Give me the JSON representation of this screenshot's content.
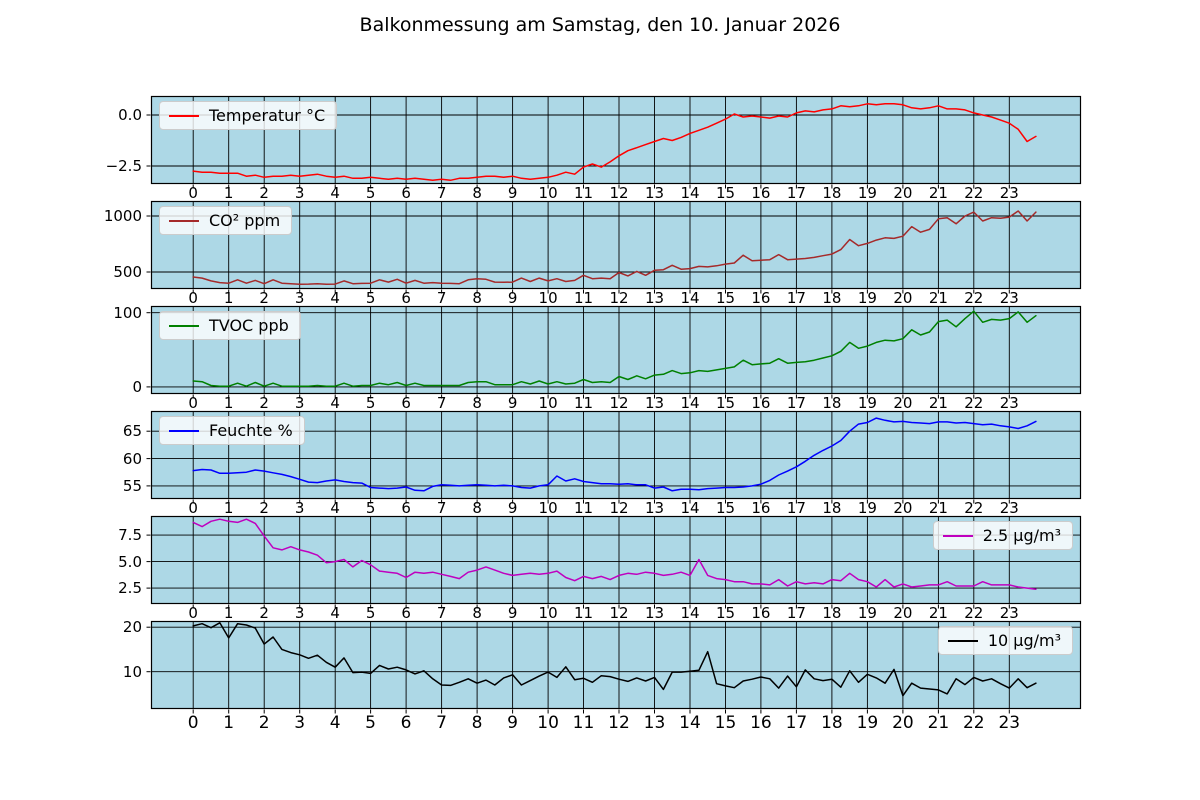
{
  "chart_data": {
    "type": "line",
    "title": "Balkonmessung am Samstag, den 10. Januar 2026",
    "panel_bg": "#add8e6",
    "grid_color": "#000000",
    "grid": true,
    "x_ticks": [
      0,
      1,
      2,
      3,
      4,
      5,
      6,
      7,
      8,
      9,
      10,
      11,
      12,
      13,
      14,
      15,
      16,
      17,
      18,
      19,
      20,
      21,
      22,
      23
    ],
    "xlim": [
      -1.19,
      25.02
    ],
    "x_start": 0,
    "x_step_hours": 0.25,
    "panels": [
      {
        "name": "temperature",
        "legend": "Temperatur °C",
        "legend_pos": "left",
        "color": "#ff0000",
        "ylim": [
          -3.38,
          0.93
        ],
        "yticks": [
          0.0,
          -2.5
        ],
        "ytick_labels": [
          "0.0",
          "−2.5"
        ],
        "values": [
          -2.75,
          -2.8,
          -2.8,
          -2.85,
          -2.85,
          -2.85,
          -3.0,
          -2.95,
          -3.05,
          -3.0,
          -3.0,
          -2.95,
          -3.0,
          -2.95,
          -2.9,
          -3.0,
          -3.05,
          -3.0,
          -3.1,
          -3.1,
          -3.05,
          -3.1,
          -3.15,
          -3.1,
          -3.15,
          -3.1,
          -3.15,
          -3.2,
          -3.15,
          -3.2,
          -3.1,
          -3.1,
          -3.05,
          -3.0,
          -3.0,
          -3.05,
          -3.0,
          -3.1,
          -3.15,
          -3.1,
          -3.05,
          -2.95,
          -2.8,
          -2.9,
          -2.55,
          -2.4,
          -2.55,
          -2.3,
          -2.0,
          -1.75,
          -1.6,
          -1.45,
          -1.3,
          -1.15,
          -1.25,
          -1.1,
          -0.9,
          -0.75,
          -0.6,
          -0.4,
          -0.2,
          0.05,
          -0.1,
          -0.05,
          -0.1,
          -0.15,
          -0.05,
          -0.1,
          0.1,
          0.2,
          0.15,
          0.25,
          0.3,
          0.45,
          0.4,
          0.45,
          0.55,
          0.5,
          0.55,
          0.55,
          0.5,
          0.35,
          0.3,
          0.35,
          0.45,
          0.3,
          0.3,
          0.25,
          0.1,
          0.0,
          -0.1,
          -0.25,
          -0.4,
          -0.7,
          -1.3,
          -1.05
        ]
      },
      {
        "name": "co2",
        "legend": "CO² ppm",
        "legend_pos": "left",
        "color": "#a52a2a",
        "ylim": [
          348,
          1134
        ],
        "yticks": [
          1000,
          500
        ],
        "ytick_labels": [
          "1000",
          "500"
        ],
        "values": [
          455,
          445,
          420,
          405,
          400,
          430,
          400,
          425,
          395,
          430,
          400,
          395,
          390,
          392,
          395,
          390,
          392,
          420,
          395,
          398,
          400,
          430,
          410,
          435,
          400,
          425,
          400,
          405,
          400,
          398,
          395,
          430,
          440,
          435,
          410,
          408,
          410,
          445,
          415,
          445,
          420,
          440,
          415,
          425,
          470,
          440,
          445,
          440,
          495,
          465,
          505,
          470,
          515,
          520,
          560,
          525,
          530,
          550,
          545,
          555,
          570,
          580,
          650,
          600,
          605,
          610,
          655,
          610,
          615,
          620,
          630,
          645,
          660,
          700,
          790,
          735,
          755,
          785,
          805,
          800,
          820,
          905,
          855,
          880,
          975,
          985,
          930,
          1000,
          1035,
          955,
          985,
          980,
          990,
          1045,
          955,
          1035
        ]
      },
      {
        "name": "tvoc",
        "legend": "TVOC ppb",
        "legend_pos": "left",
        "color": "#008000",
        "ylim": [
          -9.5,
          109
        ],
        "yticks": [
          100,
          0
        ],
        "ytick_labels": [
          "100",
          "0"
        ],
        "values": [
          8,
          7,
          2,
          1,
          1,
          5,
          1,
          6,
          1,
          5,
          1,
          1,
          1,
          1,
          2,
          1,
          1,
          5,
          1,
          2,
          2,
          5,
          3,
          6,
          2,
          5,
          2,
          2,
          2,
          2,
          2,
          6,
          7,
          7,
          3,
          3,
          3,
          7,
          4,
          8,
          4,
          7,
          4,
          5,
          10,
          6,
          7,
          6,
          14,
          10,
          15,
          11,
          16,
          17,
          22,
          18,
          19,
          22,
          21,
          23,
          25,
          27,
          36,
          30,
          31,
          32,
          38,
          32,
          33,
          34,
          36,
          39,
          42,
          48,
          60,
          52,
          55,
          60,
          63,
          62,
          65,
          77,
          70,
          74,
          88,
          90,
          81,
          92,
          102,
          87,
          91,
          90,
          92,
          101,
          87,
          96
        ]
      },
      {
        "name": "humidity",
        "legend": "Feuchte %",
        "legend_pos": "left",
        "color": "#0000ff",
        "ylim": [
          52.6,
          68.7
        ],
        "yticks": [
          65,
          60,
          55
        ],
        "ytick_labels": [
          "65",
          "60",
          "55"
        ],
        "values": [
          57.8,
          58.0,
          57.9,
          57.3,
          57.3,
          57.4,
          57.5,
          57.9,
          57.7,
          57.4,
          57.1,
          56.7,
          56.2,
          55.7,
          55.6,
          55.9,
          56.1,
          55.8,
          55.6,
          55.5,
          54.7,
          54.6,
          54.5,
          54.6,
          54.8,
          54.2,
          54.1,
          54.9,
          55.2,
          55.1,
          55.0,
          55.1,
          55.2,
          55.1,
          55.0,
          55.1,
          55.0,
          54.7,
          54.6,
          55.0,
          55.2,
          56.8,
          55.9,
          56.3,
          55.8,
          55.6,
          55.4,
          55.4,
          55.3,
          55.4,
          55.2,
          55.2,
          54.6,
          54.8,
          54.1,
          54.4,
          54.4,
          54.3,
          54.5,
          54.6,
          54.7,
          54.7,
          54.8,
          55.0,
          55.3,
          56.0,
          57.0,
          57.7,
          58.5,
          59.5,
          60.6,
          61.5,
          62.3,
          63.3,
          65.0,
          66.3,
          66.6,
          67.4,
          67.0,
          66.7,
          66.8,
          66.6,
          66.5,
          66.4,
          66.7,
          66.7,
          66.5,
          66.6,
          66.4,
          66.2,
          66.3,
          66.0,
          65.8,
          65.5,
          66.0,
          66.8
        ]
      },
      {
        "name": "pm25",
        "legend": "2.5 µg/m³",
        "legend_pos": "right",
        "color": "#bf00bf",
        "ylim": [
          1.0,
          9.3
        ],
        "yticks": [
          7.5,
          5.0,
          2.5
        ],
        "ytick_labels": [
          "7.5",
          "5.0",
          "2.5"
        ],
        "values": [
          8.7,
          8.3,
          8.8,
          9.0,
          8.8,
          8.7,
          9.0,
          8.6,
          7.4,
          6.3,
          6.1,
          6.4,
          6.1,
          5.9,
          5.6,
          4.9,
          5.0,
          5.2,
          4.5,
          5.1,
          4.7,
          4.1,
          4.0,
          3.9,
          3.5,
          4.0,
          3.9,
          4.0,
          3.8,
          3.6,
          3.4,
          4.0,
          4.2,
          4.5,
          4.2,
          3.9,
          3.7,
          3.8,
          3.9,
          3.8,
          3.9,
          4.1,
          3.5,
          3.2,
          3.6,
          3.4,
          3.6,
          3.3,
          3.7,
          3.9,
          3.8,
          4.0,
          3.9,
          3.7,
          3.8,
          4.0,
          3.7,
          5.2,
          3.7,
          3.4,
          3.3,
          3.1,
          3.1,
          2.9,
          2.9,
          2.8,
          3.3,
          2.7,
          3.1,
          2.9,
          3.0,
          2.9,
          3.3,
          3.2,
          3.9,
          3.3,
          3.1,
          2.6,
          3.3,
          2.6,
          2.9,
          2.6,
          2.7,
          2.8,
          2.8,
          3.1,
          2.7,
          2.7,
          2.7,
          3.1,
          2.8,
          2.8,
          2.8,
          2.6,
          2.5,
          2.4
        ]
      },
      {
        "name": "pm10",
        "legend": "10 µg/m³",
        "legend_pos": "right",
        "color": "#000000",
        "ylim": [
          1.6,
          21.4
        ],
        "yticks": [
          20,
          10
        ],
        "ytick_labels": [
          "20",
          "10"
        ],
        "values": [
          20.3,
          20.8,
          19.9,
          21.0,
          17.6,
          20.8,
          20.5,
          19.8,
          16.2,
          17.8,
          15.0,
          14.3,
          13.8,
          13.0,
          13.7,
          12.1,
          11.0,
          13.1,
          9.8,
          9.9,
          9.6,
          11.4,
          10.6,
          11.0,
          10.4,
          9.5,
          10.2,
          8.4,
          7.0,
          6.9,
          7.6,
          8.4,
          7.4,
          8.1,
          7.0,
          8.6,
          9.3,
          7.0,
          8.0,
          9.0,
          9.9,
          8.7,
          11.1,
          8.2,
          8.5,
          7.6,
          9.1,
          8.9,
          8.3,
          7.8,
          8.6,
          7.9,
          8.7,
          6.0,
          9.9,
          9.9,
          10.1,
          10.3,
          14.5,
          7.3,
          6.8,
          6.4,
          7.9,
          8.3,
          8.8,
          8.4,
          6.3,
          9.0,
          6.6,
          10.4,
          8.4,
          8.0,
          8.3,
          6.5,
          10.2,
          7.6,
          9.4,
          8.6,
          7.4,
          10.5,
          4.6,
          7.4,
          6.3,
          6.1,
          5.9,
          5.0,
          8.4,
          7.1,
          8.7,
          7.9,
          8.4,
          7.3,
          6.3,
          8.4,
          6.4,
          7.4
        ]
      }
    ]
  }
}
